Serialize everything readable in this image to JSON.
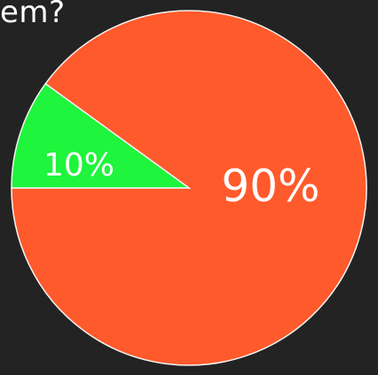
{
  "title_fragment": "em?",
  "colors": {
    "background": "#232323",
    "text": "#ffffff"
  },
  "chart_data": {
    "type": "pie",
    "title": "em?",
    "slices": [
      {
        "label": "90%",
        "value": 90,
        "color": "#ff5a2c"
      },
      {
        "label": "10%",
        "value": 10,
        "color": "#1ef53c"
      }
    ],
    "legend": "none"
  }
}
